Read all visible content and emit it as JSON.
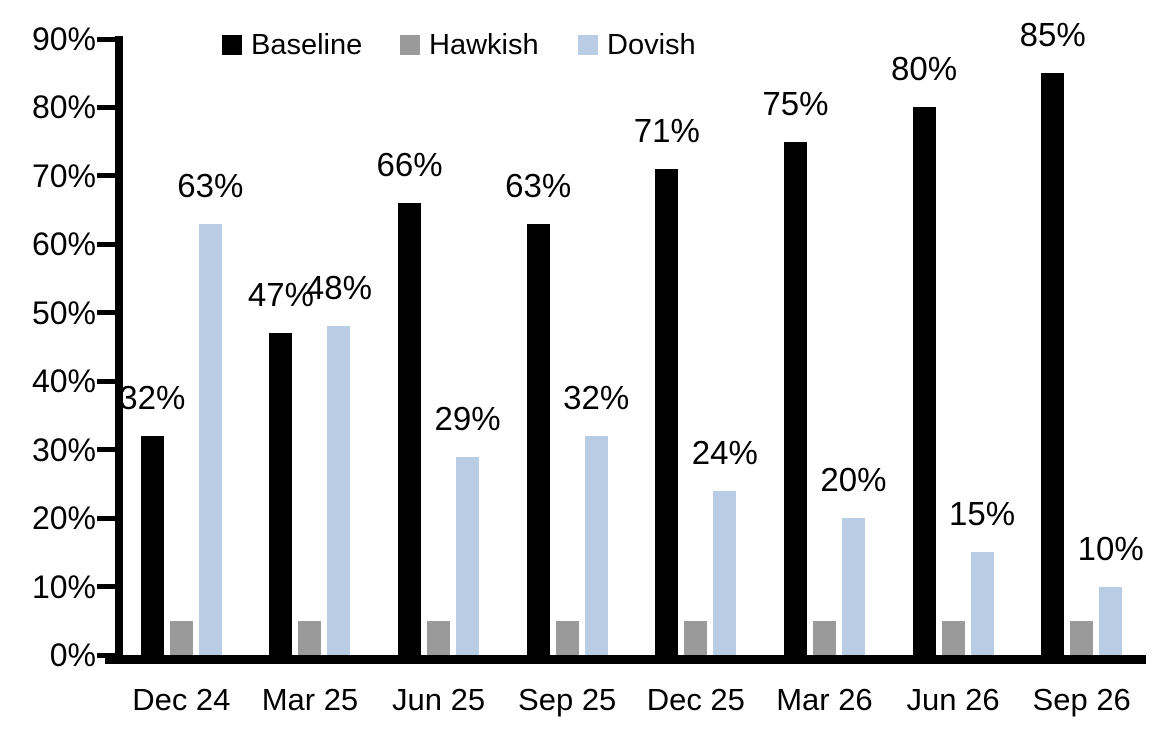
{
  "chart_data": {
    "type": "bar",
    "title": "",
    "categories": [
      "Dec 24",
      "Mar 25",
      "Jun 25",
      "Sep 25",
      "Dec 25",
      "Mar 26",
      "Jun 26",
      "Sep 26"
    ],
    "series": [
      {
        "name": "Baseline",
        "color": "#000000",
        "values": [
          32,
          47,
          66,
          63,
          71,
          75,
          80,
          85
        ],
        "show_labels": true
      },
      {
        "name": "Hawkish",
        "color": "#9a9a9a",
        "values": [
          5,
          5,
          5,
          5,
          5,
          5,
          5,
          5
        ],
        "show_labels": false
      },
      {
        "name": "Dovish",
        "color": "#b8cce4",
        "values": [
          63,
          48,
          29,
          32,
          24,
          20,
          15,
          10
        ],
        "show_labels": true
      }
    ],
    "data_labels": {
      "Baseline": [
        "32%",
        "47%",
        "66%",
        "63%",
        "71%",
        "75%",
        "80%",
        "85%"
      ],
      "Dovish": [
        "63%",
        "48%",
        "29%",
        "32%",
        "24%",
        "20%",
        "15%",
        "10%"
      ]
    },
    "xlabel": "",
    "ylabel": "",
    "ylim": [
      0,
      90
    ],
    "ytick_step": 10,
    "ytick_labels": [
      "0%",
      "10%",
      "20%",
      "30%",
      "40%",
      "50%",
      "60%",
      "70%",
      "80%",
      "90%"
    ],
    "tick_format": "percent",
    "legend_position": "top",
    "grid": false,
    "axis_color": "#000000",
    "background_color": "#ffffff"
  }
}
